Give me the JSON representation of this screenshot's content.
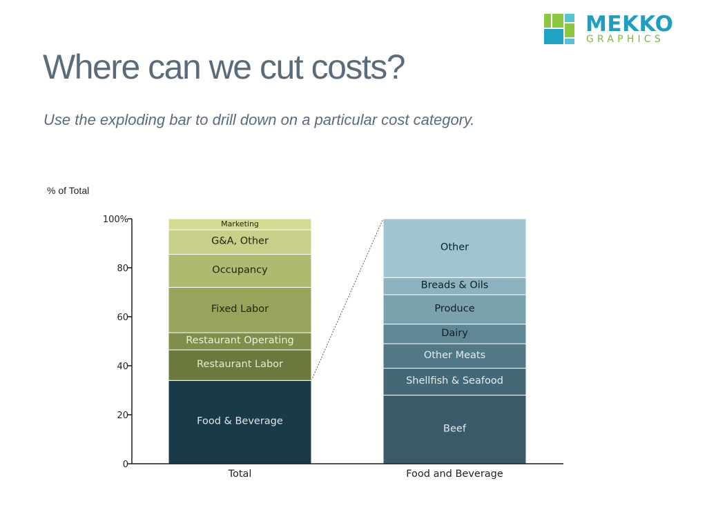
{
  "header": {
    "title": "Where can we cut costs?",
    "subtitle": "Use the exploding bar to drill down on a particular cost category."
  },
  "logo": {
    "word": "MEKKO",
    "sub": "GRAPHICS",
    "colors": {
      "word": "#1e9ec0",
      "sub": "#7ab83a",
      "lime": "#8dc63f",
      "teal": "#1fa3c0",
      "aqua": "#55c4d4"
    }
  },
  "chart_data": {
    "type": "bar",
    "subtype": "stacked-100-exploded",
    "ylabel": "% of Total",
    "ylim": [
      0,
      100
    ],
    "yticks": [
      {
        "value": 0,
        "label": "0"
      },
      {
        "value": 20,
        "label": "20"
      },
      {
        "value": 40,
        "label": "40"
      },
      {
        "value": 60,
        "label": "60"
      },
      {
        "value": 80,
        "label": "80"
      },
      {
        "value": 100,
        "label": "100%"
      }
    ],
    "categories": [
      "Total",
      "Food and Beverage"
    ],
    "exploded_segment": "Food & Beverage",
    "bars": [
      {
        "category": "Total",
        "segments": [
          {
            "label": "Food & Beverage",
            "value": 34,
            "color": "#1b3a48",
            "text_color": "#dfe7ea",
            "small": false
          },
          {
            "label": "Restaurant Labor",
            "value": 12.5,
            "color": "#6b7a3c",
            "text_color": "#e6e9d7",
            "small": false
          },
          {
            "label": "Restaurant Operating",
            "value": 7,
            "color": "#7f8e48",
            "text_color": "#eef0e0",
            "small": false
          },
          {
            "label": "Fixed Labor",
            "value": 18.5,
            "color": "#98a45c",
            "text_color": "#20260e",
            "small": false
          },
          {
            "label": "Occupancy",
            "value": 13.5,
            "color": "#afb970",
            "text_color": "#20260e",
            "small": false
          },
          {
            "label": "G&A, Other",
            "value": 10,
            "color": "#c7cf88",
            "text_color": "#20260e",
            "small": false
          },
          {
            "label": "Marketing",
            "value": 4.5,
            "color": "#d5dc92",
            "text_color": "#20260e",
            "small": true
          }
        ]
      },
      {
        "category": "Food and Beverage",
        "segments": [
          {
            "label": "Beef",
            "value": 28,
            "color": "#3a5a68",
            "text_color": "#e4ecef",
            "small": false
          },
          {
            "label": "Shellfish & Seafood",
            "value": 11,
            "color": "#446876",
            "text_color": "#e4ecef",
            "small": false
          },
          {
            "label": "Other Meats",
            "value": 10,
            "color": "#527887",
            "text_color": "#e4ecef",
            "small": false
          },
          {
            "label": "Dairy",
            "value": 8,
            "color": "#5f8796",
            "text_color": "#0f1f26",
            "small": false
          },
          {
            "label": "Produce",
            "value": 12,
            "color": "#7aa1ae",
            "text_color": "#0f1f26",
            "small": false
          },
          {
            "label": "Breads & Oils",
            "value": 7,
            "color": "#8cb3bf",
            "text_color": "#0f1f26",
            "small": false
          },
          {
            "label": "Other",
            "value": 24,
            "color": "#9ec5d1",
            "text_color": "#0f1f26",
            "small": false
          }
        ]
      }
    ],
    "colors": {
      "axis": "#1a1a1a",
      "label": "#222222",
      "connector": "#555555"
    }
  }
}
